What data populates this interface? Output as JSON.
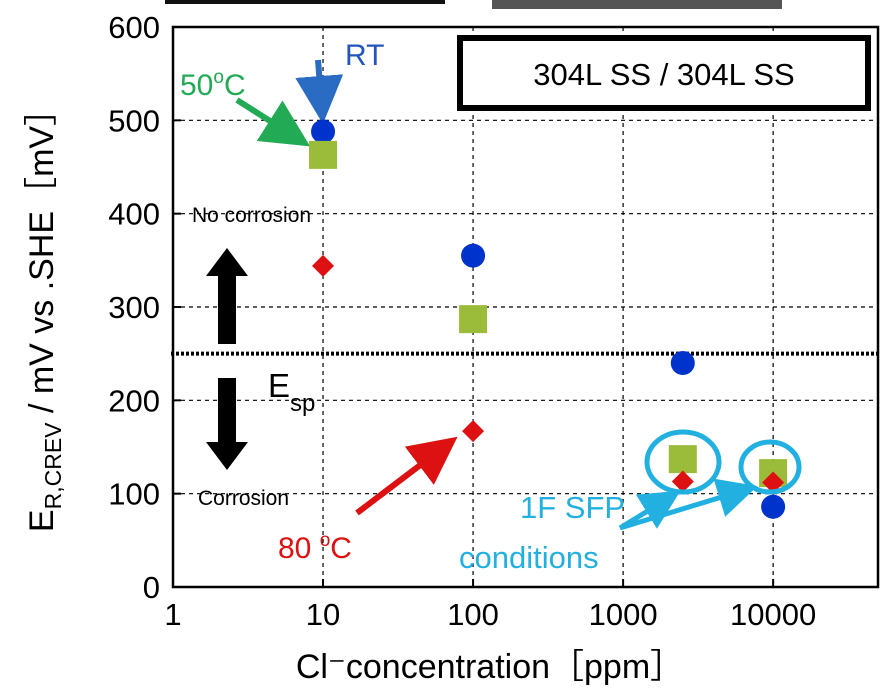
{
  "chart_data": {
    "type": "scatter",
    "title": "",
    "xlabel": "Cl⁻concentration［ppm］",
    "ylabel": {
      "main": "E",
      "sub": "R,CREV",
      "rest": " / mV vs .SHE［mV］"
    },
    "x_scale": "log",
    "xlim": [
      1,
      50000
    ],
    "ylim": [
      0,
      600
    ],
    "x_ticks": [
      1,
      10,
      100,
      1000,
      10000
    ],
    "x_tick_labels": [
      "1",
      "10",
      "100",
      "1000",
      "10000"
    ],
    "y_ticks": [
      0,
      100,
      200,
      300,
      400,
      500,
      600
    ],
    "y_tick_labels": [
      "0",
      "100",
      "200",
      "300",
      "400",
      "500",
      "600"
    ],
    "grid": true,
    "series": [
      {
        "name": "RT",
        "marker": "circle",
        "color": "#0033cc",
        "points": [
          {
            "x": 10,
            "y": 488
          },
          {
            "x": 100,
            "y": 355
          },
          {
            "x": 2500,
            "y": 240
          },
          {
            "x": 10000,
            "y": 86
          }
        ]
      },
      {
        "name": "50°C",
        "marker": "square",
        "color": "#9bbb3a",
        "points": [
          {
            "x": 10,
            "y": 463
          },
          {
            "x": 100,
            "y": 287
          },
          {
            "x": 2500,
            "y": 137
          },
          {
            "x": 10000,
            "y": 122
          }
        ]
      },
      {
        "name": "80 °C",
        "marker": "diamond",
        "color": "#dd1111",
        "points": [
          {
            "x": 10,
            "y": 344
          },
          {
            "x": 100,
            "y": 167
          },
          {
            "x": 2500,
            "y": 113
          },
          {
            "x": 10000,
            "y": 112
          }
        ]
      }
    ],
    "reference_line": {
      "y": 250,
      "label_main": "E",
      "label_sub": "sp"
    },
    "annotations": {
      "box_label": "304L SS / 304L SS",
      "rt_label": "RT",
      "c50_base": "50",
      "c50_sup": "o",
      "c50_unit": "C",
      "c80_base": "80 ",
      "c80_sup": "o",
      "c80_unit": "C",
      "no_corrosion": "No corrosion",
      "corrosion": "Corrosion",
      "sfp_line1": "1F SFP",
      "sfp_line2": "conditions"
    },
    "colors": {
      "rt": "#0033cc",
      "rt_label": "#2255bb",
      "c50": "#22aa55",
      "c80": "#dd1111",
      "sfp": "#22b0e0"
    }
  }
}
